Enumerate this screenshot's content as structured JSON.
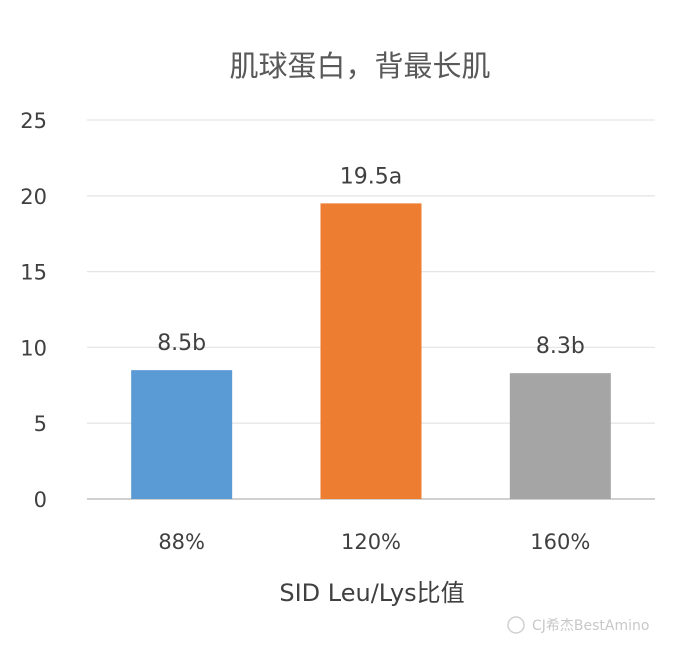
{
  "chart_data": {
    "type": "bar",
    "title": "肌球蛋白，背最长肌",
    "xlabel": "SID Leu/Lys比值",
    "ylabel": "",
    "ylim": [
      0,
      25
    ],
    "yticks": [
      "0",
      "5",
      "10",
      "15",
      "20",
      "25"
    ],
    "grid": true,
    "categories": [
      "88%",
      "120%",
      "160%"
    ],
    "values": [
      8.5,
      19.5,
      8.3
    ],
    "data_labels": [
      "8.5b",
      "19.5a",
      "8.3b"
    ],
    "colors": [
      "#5B9BD5",
      "#ED7D31",
      "#A5A5A5"
    ]
  },
  "watermark": "CJ希杰BestAmino"
}
